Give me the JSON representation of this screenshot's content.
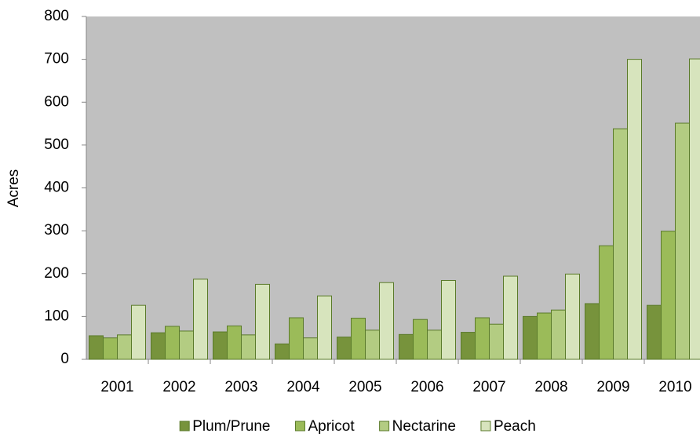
{
  "chart_data": {
    "type": "bar",
    "y_label": "Acres",
    "categories": [
      "2001",
      "2002",
      "2003",
      "2004",
      "2005",
      "2006",
      "2007",
      "2008",
      "2009",
      "2010"
    ],
    "series": [
      {
        "name": "Plum/Prune",
        "color": "#77933c",
        "values": [
          55,
          62,
          64,
          36,
          52,
          58,
          63,
          100,
          130,
          126
        ]
      },
      {
        "name": "Apricot",
        "color": "#9bbb59",
        "values": [
          50,
          77,
          78,
          97,
          96,
          93,
          97,
          108,
          265,
          299
        ]
      },
      {
        "name": "Nectarine",
        "color": "#b3cc82",
        "values": [
          57,
          66,
          57,
          50,
          68,
          68,
          82,
          115,
          538,
          551
        ]
      },
      {
        "name": "Peach",
        "color": "#d7e4bd",
        "values": [
          126,
          187,
          175,
          148,
          179,
          184,
          194,
          199,
          700,
          701
        ]
      }
    ],
    "ylim": [
      0,
      800
    ],
    "yticks": [
      0,
      100,
      200,
      300,
      400,
      500,
      600,
      700,
      800
    ],
    "grid": false,
    "legend": "bottom"
  }
}
